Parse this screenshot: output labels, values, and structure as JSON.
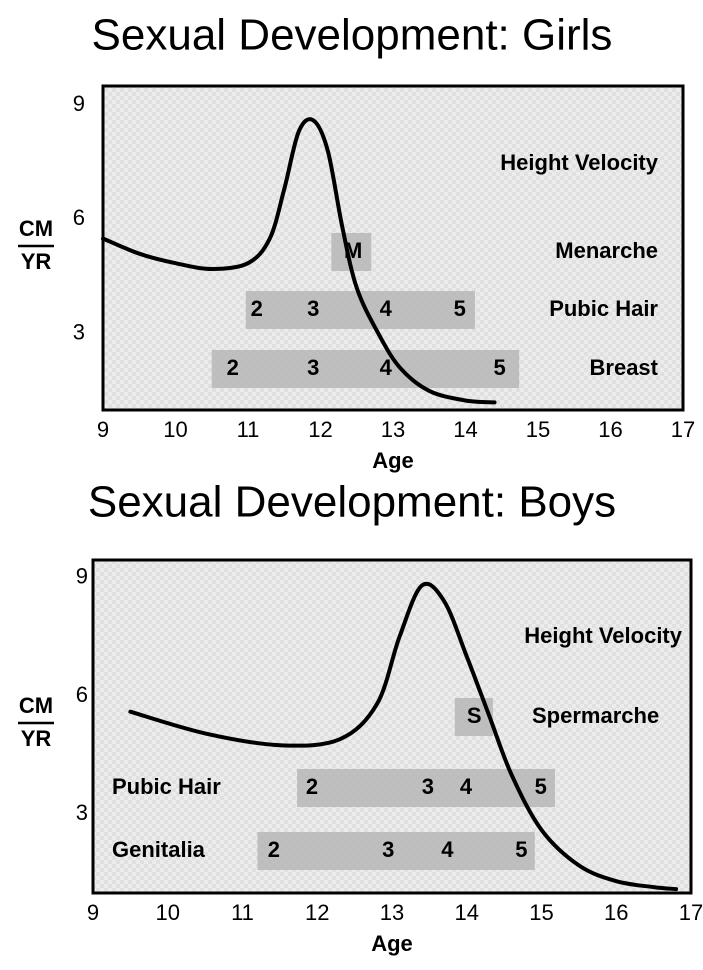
{
  "chart_data": [
    {
      "type": "line",
      "title": "Sexual Development: Girls",
      "ylabel": {
        "numerator": "CM",
        "denominator": "YR"
      },
      "xlabel": "Age",
      "xlim": [
        9,
        17
      ],
      "xticks": [
        9,
        10,
        11,
        12,
        13,
        14,
        15,
        16,
        17
      ],
      "ylim": [
        1,
        9.5
      ],
      "yticks": [
        3,
        6,
        9
      ],
      "grid": false,
      "series": [
        {
          "name": "Height Velocity",
          "color": "#000000",
          "x": [
            9,
            9.5,
            10,
            10.5,
            11,
            11.3,
            11.5,
            11.7,
            11.9,
            12.1,
            12.3,
            12.5,
            12.8,
            13.1,
            13.5,
            14,
            14.4
          ],
          "values": [
            5.5,
            5.1,
            4.85,
            4.7,
            4.85,
            5.5,
            6.8,
            8.3,
            8.6,
            7.8,
            5.8,
            4.2,
            3.0,
            2.1,
            1.5,
            1.25,
            1.2
          ]
        }
      ],
      "stages": [
        {
          "name": "Menarche",
          "start": 12.15,
          "end": 12.7,
          "labels": [
            "M"
          ],
          "positions": [
            12.45
          ]
        },
        {
          "name": "Pubic Hair",
          "start": 10.97,
          "end": 14.13,
          "labels": [
            2,
            3,
            4,
            5
          ],
          "positions": [
            11.12,
            11.9,
            12.9,
            13.92
          ]
        },
        {
          "name": "Breast",
          "start": 10.5,
          "end": 14.74,
          "labels": [
            2,
            3,
            4,
            5
          ],
          "positions": [
            10.79,
            11.9,
            12.9,
            14.47
          ]
        }
      ]
    },
    {
      "type": "line",
      "title": "Sexual Development: Boys",
      "ylabel": {
        "numerator": "CM",
        "denominator": "YR"
      },
      "xlabel": "Age",
      "xlim": [
        9,
        17
      ],
      "xticks": [
        9,
        10,
        11,
        12,
        13,
        14,
        15,
        16,
        17
      ],
      "ylim": [
        1,
        9.45
      ],
      "yticks": [
        3,
        6,
        9
      ],
      "grid": false,
      "series": [
        {
          "name": "Height Velocity",
          "color": "#000000",
          "x": [
            9.5,
            10.5,
            11.5,
            12.3,
            12.8,
            13.1,
            13.4,
            13.7,
            14,
            14.3,
            14.6,
            15,
            15.5,
            16,
            16.5,
            16.8
          ],
          "values": [
            5.6,
            5.05,
            4.75,
            4.9,
            5.8,
            7.5,
            8.8,
            8.4,
            7.0,
            5.5,
            4.0,
            2.6,
            1.7,
            1.3,
            1.15,
            1.1
          ]
        }
      ],
      "stages": [
        {
          "name": "Spermarche",
          "start": 13.84,
          "end": 14.35,
          "labels": [
            "S"
          ],
          "positions": [
            14.1
          ]
        },
        {
          "name": "Pubic Hair",
          "start": 11.73,
          "end": 15.18,
          "labels": [
            2,
            3,
            4,
            5
          ],
          "positions": [
            11.93,
            13.48,
            13.99,
            14.99
          ]
        },
        {
          "name": "Genitalia",
          "start": 11.2,
          "end": 14.91,
          "labels": [
            2,
            3,
            4,
            5
          ],
          "positions": [
            11.42,
            12.95,
            13.74,
            14.73
          ]
        }
      ]
    }
  ]
}
